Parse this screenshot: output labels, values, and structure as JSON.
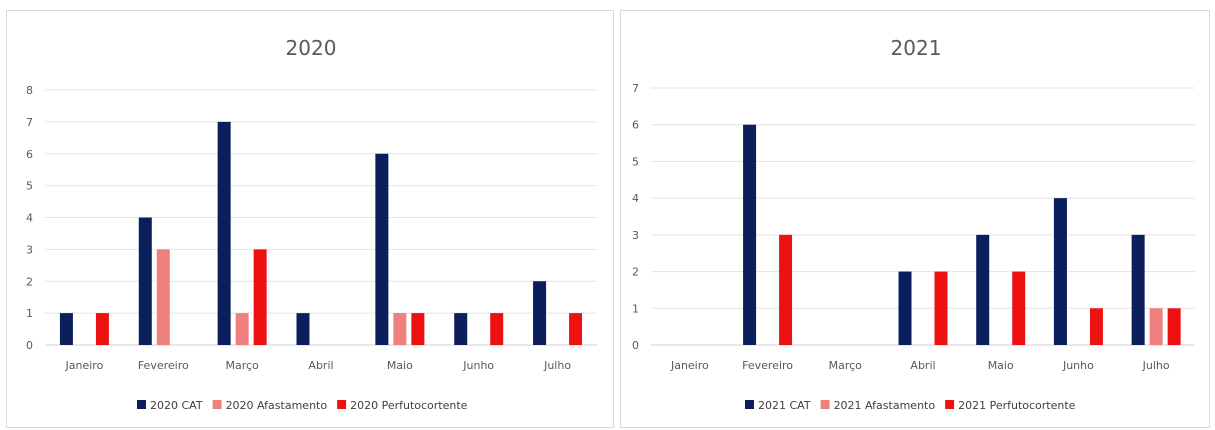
{
  "chart_data": [
    {
      "type": "bar",
      "title": "2020",
      "categories": [
        "Janeiro",
        "Fevereiro",
        "Março",
        "Abril",
        "Maio",
        "Junho",
        "Julho"
      ],
      "ylim": [
        0,
        8
      ],
      "yticks": [
        "0",
        "1",
        "2",
        "3",
        "4",
        "5",
        "6",
        "7",
        "8"
      ],
      "grid": true,
      "legend_position": "bottom",
      "series": [
        {
          "name": "2020 CAT",
          "color": "#0b1f5c",
          "values": [
            1,
            4,
            7,
            1,
            6,
            1,
            2
          ]
        },
        {
          "name": "2020 Afastamento",
          "color": "#f08080",
          "values": [
            0,
            3,
            1,
            0,
            1,
            0,
            0
          ]
        },
        {
          "name": "2020 Perfutocortente",
          "color": "#ee1111",
          "values": [
            1,
            0,
            3,
            0,
            1,
            1,
            1
          ]
        }
      ]
    },
    {
      "type": "bar",
      "title": "2021",
      "categories": [
        "Janeiro",
        "Fevereiro",
        "Março",
        "Abril",
        "Maio",
        "Junho",
        "Julho"
      ],
      "ylim": [
        0,
        7
      ],
      "yticks": [
        "0",
        "1",
        "2",
        "3",
        "4",
        "5",
        "6",
        "7"
      ],
      "grid": true,
      "legend_position": "bottom",
      "series": [
        {
          "name": "2021 CAT",
          "color": "#0b1f5c",
          "values": [
            0,
            6,
            0,
            2,
            3,
            4,
            3
          ]
        },
        {
          "name": "2021 Afastamento",
          "color": "#f08080",
          "values": [
            0,
            0,
            0,
            0,
            0,
            0,
            1
          ]
        },
        {
          "name": "2021 Perfutocortente",
          "color": "#ee1111",
          "values": [
            0,
            3,
            0,
            2,
            2,
            1,
            1
          ]
        }
      ]
    }
  ]
}
